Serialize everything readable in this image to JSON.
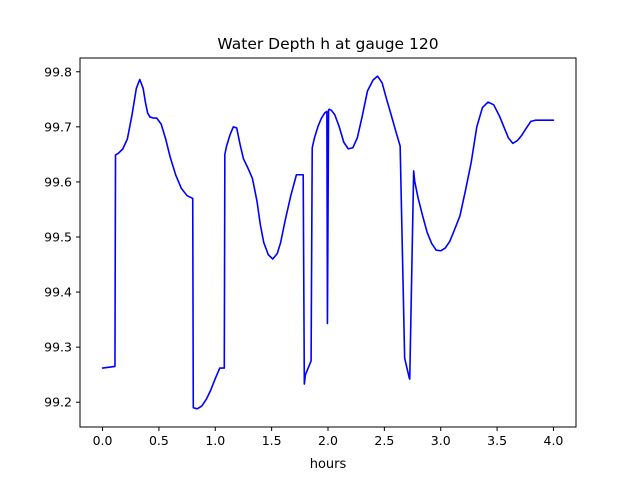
{
  "chart_data": {
    "type": "line",
    "title": "Water Depth h at gauge 120",
    "xlabel": "hours",
    "ylabel": "",
    "xlim": [
      -0.2,
      4.2
    ],
    "ylim": [
      99.155,
      99.825
    ],
    "xticks": [
      0.0,
      0.5,
      1.0,
      1.5,
      2.0,
      2.5,
      3.0,
      3.5,
      4.0
    ],
    "xtick_labels": [
      "0.0",
      "0.5",
      "1.0",
      "1.5",
      "2.0",
      "2.5",
      "3.0",
      "3.5",
      "4.0"
    ],
    "yticks": [
      99.2,
      99.3,
      99.4,
      99.5,
      99.6,
      99.7,
      99.8
    ],
    "ytick_labels": [
      "99.2",
      "99.3",
      "99.4",
      "99.5",
      "99.6",
      "99.7",
      "99.8"
    ],
    "grid": false,
    "color": "#0000ff",
    "series": [
      {
        "x": [
          0.0,
          0.11,
          0.115,
          0.14,
          0.18,
          0.22,
          0.26,
          0.3,
          0.33,
          0.36,
          0.38,
          0.4,
          0.42,
          0.45,
          0.48,
          0.52,
          0.56,
          0.6,
          0.65,
          0.7,
          0.75,
          0.8,
          0.805,
          0.84,
          0.88,
          0.92,
          0.96,
          1.0,
          1.04,
          1.08,
          1.085,
          1.1,
          1.13,
          1.16,
          1.19,
          1.22,
          1.25,
          1.29,
          1.33,
          1.37,
          1.4,
          1.43,
          1.47,
          1.51,
          1.55,
          1.58,
          1.62,
          1.67,
          1.72,
          1.78,
          1.79,
          1.8,
          1.85,
          1.86,
          1.88,
          1.91,
          1.94,
          1.97,
          1.99,
          1.995,
          2.005,
          2.01,
          2.03,
          2.06,
          2.1,
          2.14,
          2.18,
          2.22,
          2.26,
          2.3,
          2.35,
          2.4,
          2.44,
          2.48,
          2.52,
          2.56,
          2.6,
          2.64,
          2.68,
          2.72,
          2.725,
          2.76,
          2.77,
          2.8,
          2.84,
          2.88,
          2.92,
          2.96,
          3.0,
          3.04,
          3.08,
          3.12,
          3.17,
          3.22,
          3.27,
          3.32,
          3.37,
          3.42,
          3.47,
          3.52,
          3.56,
          3.6,
          3.64,
          3.68,
          3.72,
          3.76,
          3.8,
          3.84,
          3.88,
          3.92,
          3.96,
          4.0
        ],
        "y": [
          99.262,
          99.265,
          99.649,
          99.652,
          99.66,
          99.678,
          99.72,
          99.77,
          99.786,
          99.77,
          99.745,
          99.725,
          99.718,
          99.716,
          99.716,
          99.705,
          99.678,
          99.645,
          99.612,
          99.588,
          99.575,
          99.57,
          99.19,
          99.188,
          99.193,
          99.205,
          99.222,
          99.243,
          99.262,
          99.262,
          99.65,
          99.665,
          99.685,
          99.7,
          99.698,
          99.668,
          99.642,
          99.625,
          99.606,
          99.565,
          99.522,
          99.49,
          99.468,
          99.46,
          99.47,
          99.49,
          99.53,
          99.575,
          99.613,
          99.613,
          99.233,
          99.25,
          99.275,
          99.662,
          99.68,
          99.7,
          99.715,
          99.725,
          99.728,
          99.343,
          99.73,
          99.732,
          99.73,
          99.722,
          99.7,
          99.672,
          99.66,
          99.662,
          99.68,
          99.716,
          99.765,
          99.785,
          99.792,
          99.78,
          99.75,
          99.722,
          99.693,
          99.665,
          99.28,
          99.245,
          99.242,
          99.62,
          99.6,
          99.57,
          99.538,
          99.508,
          99.488,
          99.476,
          99.475,
          99.48,
          99.492,
          99.512,
          99.538,
          99.585,
          99.635,
          99.7,
          99.735,
          99.745,
          99.74,
          99.72,
          99.7,
          99.68,
          99.67,
          99.675,
          99.685,
          99.698,
          99.71,
          99.712,
          99.712,
          99.712,
          99.712,
          99.712
        ]
      }
    ]
  }
}
